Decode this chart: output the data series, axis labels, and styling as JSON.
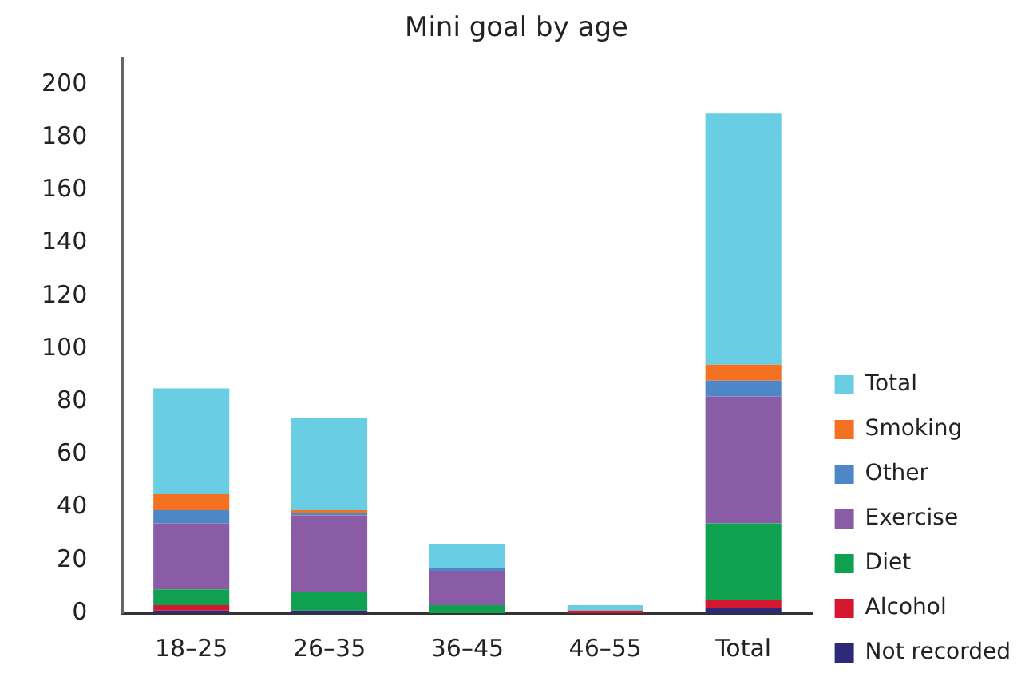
{
  "chart_data": {
    "type": "bar",
    "title": "Mini goal by age",
    "categories": [
      "18–25",
      "26–35",
      "36–45",
      "46–55",
      "Total"
    ],
    "stacked": true,
    "legend": "right",
    "grid": false,
    "ylim": [
      0,
      210
    ],
    "yticks": [
      0,
      20,
      40,
      60,
      80,
      100,
      120,
      140,
      160,
      180,
      200
    ],
    "series": [
      {
        "name": "Not recorded",
        "color": "#2e2a79",
        "values": [
          1,
          1,
          0,
          0,
          2
        ]
      },
      {
        "name": "Alcohol",
        "color": "#d3182f",
        "values": [
          2,
          0,
          0,
          1,
          3
        ]
      },
      {
        "name": "Diet",
        "color": "#10a150",
        "values": [
          6,
          7,
          3,
          0,
          29
        ]
      },
      {
        "name": "Exercise",
        "color": "#8a5ca5",
        "values": [
          25,
          29,
          13,
          0,
          48
        ]
      },
      {
        "name": "Other",
        "color": "#4d87c7",
        "values": [
          5,
          1,
          1,
          0,
          6
        ]
      },
      {
        "name": "Smoking",
        "color": "#f47121",
        "values": [
          6,
          1,
          0,
          0,
          6
        ]
      },
      {
        "name": "Total",
        "color": "#69cde3",
        "values": [
          40,
          35,
          9,
          2,
          95
        ]
      }
    ]
  }
}
